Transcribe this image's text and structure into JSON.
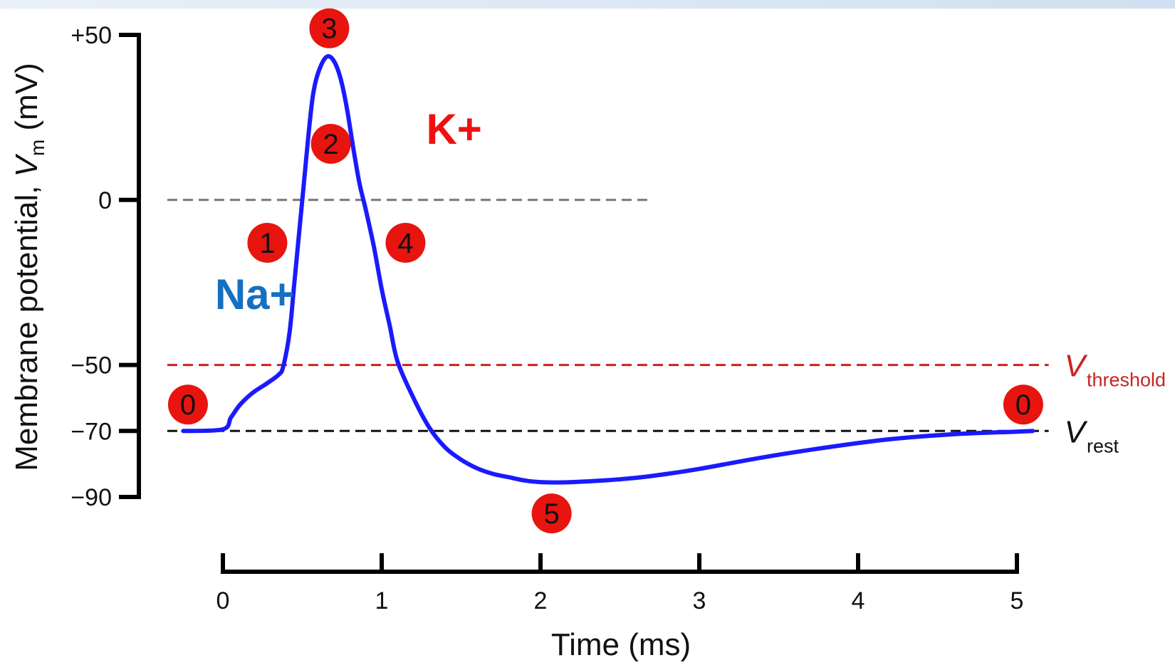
{
  "chart_data": {
    "type": "line",
    "xlabel": "Time (ms)",
    "ylabel": {
      "prefix": "Membrane potential, ",
      "var": "V",
      "sub": "m",
      "suffix": " (mV)"
    },
    "xlim": [
      -0.25,
      5.15
    ],
    "ylim": [
      -90,
      50
    ],
    "x_ticks": [
      0,
      1,
      2,
      3,
      4,
      5
    ],
    "x_tick_labels": [
      "0",
      "1",
      "2",
      "3",
      "4",
      "5"
    ],
    "y_ticks": [
      50,
      0,
      -50,
      -70,
      -90
    ],
    "y_tick_labels": [
      "+50",
      "0",
      "−50",
      "−70",
      "−90"
    ],
    "grid": false,
    "series": [
      {
        "color": "#1a1aff",
        "x": [
          -0.25,
          0.0,
          0.05,
          0.1,
          0.15,
          0.2,
          0.28,
          0.35,
          0.38,
          0.42,
          0.45,
          0.5,
          0.55,
          0.58,
          0.62,
          0.66,
          0.7,
          0.74,
          0.78,
          0.82,
          0.86,
          0.9,
          0.95,
          1.0,
          1.05,
          1.1,
          1.2,
          1.3,
          1.4,
          1.5,
          1.6,
          1.7,
          1.8,
          1.9,
          2.0,
          2.1,
          2.2,
          2.4,
          2.6,
          2.8,
          3.0,
          3.4,
          3.8,
          4.2,
          4.6,
          5.0,
          5.1
        ],
        "y": [
          -70,
          -69.5,
          -66,
          -62.5,
          -60,
          -58,
          -55.5,
          -53,
          -50.5,
          -40,
          -25,
          0,
          25,
          35,
          41,
          43.5,
          42,
          37,
          28,
          16,
          5,
          -3,
          -14,
          -27,
          -38,
          -49,
          -60,
          -69,
          -75,
          -78.7,
          -81.3,
          -83,
          -84,
          -85,
          -85.5,
          -85.6,
          -85.5,
          -85,
          -84.2,
          -83,
          -81.5,
          -78,
          -75,
          -72.5,
          -71,
          -70.2,
          -70
        ]
      }
    ],
    "reference_lines": [
      {
        "y": 0,
        "x_range": [
          -0.35,
          2.7
        ],
        "color": "#777777",
        "dash": true
      },
      {
        "y": -50,
        "x_range": [
          -0.35,
          5.2
        ],
        "color": "#cc2222",
        "dash": true,
        "label_var": "V",
        "label_sub": "threshold"
      },
      {
        "y": -70,
        "x_range": [
          -0.35,
          5.2
        ],
        "color": "#111111",
        "dash": true,
        "label_var": "V",
        "label_sub": "rest"
      }
    ],
    "annotations": {
      "markers": [
        {
          "label": "0",
          "x": -0.22,
          "y": -62
        },
        {
          "label": "1",
          "x": 0.28,
          "y": -13
        },
        {
          "label": "2",
          "x": 0.68,
          "y": 17
        },
        {
          "label": "3",
          "x": 0.67,
          "y": 52
        },
        {
          "label": "4",
          "x": 1.15,
          "y": -13
        },
        {
          "label": "5",
          "x": 2.07,
          "y": -95
        },
        {
          "label": "0",
          "x": 5.04,
          "y": -62
        }
      ],
      "ions": [
        {
          "text": "Na+",
          "color": "#1670c0",
          "x": -0.05,
          "y": -33
        },
        {
          "text": "K+",
          "color": "#ee1111",
          "x": 1.28,
          "y": 17
        }
      ]
    }
  }
}
